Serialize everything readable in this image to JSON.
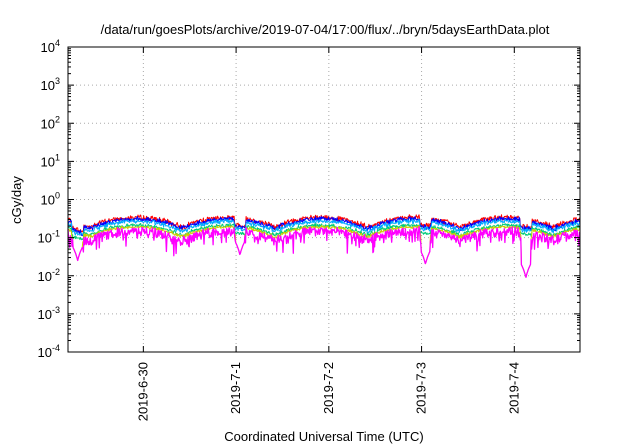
{
  "chart_data": {
    "type": "line",
    "title": "/data/run/goesPlots/archive/2019-07-04/17:00/flux/../bryn/5daysEarthData.plot",
    "xlabel": "Coordinated Universal Time (UTC)",
    "ylabel": "cGy/day",
    "yscale": "log",
    "ylim": [
      0.0001,
      10000
    ],
    "xlim": [
      "2019-06-29T04:30",
      "2019-07-04T17:00"
    ],
    "grid": true,
    "legend": "none",
    "yticks": [
      {
        "value": 0.0001,
        "base": "10",
        "exp": "-4"
      },
      {
        "value": 0.001,
        "base": "10",
        "exp": "-3"
      },
      {
        "value": 0.01,
        "base": "10",
        "exp": "-2"
      },
      {
        "value": 0.1,
        "base": "10",
        "exp": "-1"
      },
      {
        "value": 1,
        "base": "10",
        "exp": "0"
      },
      {
        "value": 10,
        "base": "10",
        "exp": "1"
      },
      {
        "value": 100,
        "base": "10",
        "exp": "2"
      },
      {
        "value": 1000,
        "base": "10",
        "exp": "3"
      },
      {
        "value": 10000,
        "base": "10",
        "exp": "4"
      }
    ],
    "xticks": [
      {
        "date": "2019-06-30",
        "label": "2019-6-30"
      },
      {
        "date": "2019-07-01",
        "label": "2019-7-1"
      },
      {
        "date": "2019-07-02",
        "label": "2019-7-2"
      },
      {
        "date": "2019-07-03",
        "label": "2019-7-3"
      },
      {
        "date": "2019-07-04",
        "label": "2019-7-4"
      }
    ],
    "dips": [
      {
        "date": "2019-06-29T07:00",
        "value": 0.025
      },
      {
        "date": "2019-07-01T01:00",
        "value": 0.035
      },
      {
        "date": "2019-07-03T01:00",
        "value": 0.02
      },
      {
        "date": "2019-07-04T03:00",
        "value": 0.009
      }
    ],
    "series": [
      {
        "color": "#ff0000",
        "base": 0.34,
        "amp": 0.13,
        "noise": 0.12
      },
      {
        "color": "#0000ff",
        "base": 0.31,
        "amp": 0.12,
        "noise": 0.11
      },
      {
        "color": "#00aaff",
        "base": 0.27,
        "amp": 0.1,
        "noise": 0.1
      },
      {
        "color": "#00cc77",
        "base": 0.21,
        "amp": 0.07,
        "noise": 0.08
      },
      {
        "color": "#cccc00",
        "base": 0.19,
        "amp": 0.06,
        "noise": 0.07
      },
      {
        "color": "#ff00ff",
        "base": 0.15,
        "amp": 0.06,
        "noise": 0.25
      }
    ]
  }
}
